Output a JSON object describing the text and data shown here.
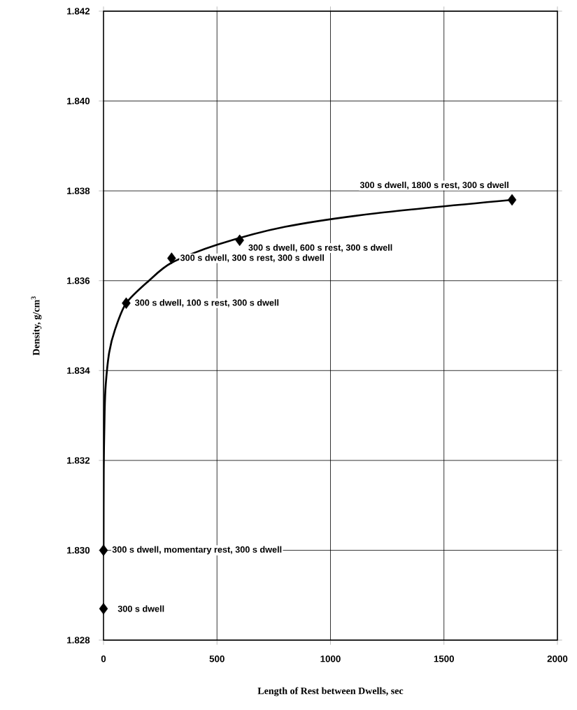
{
  "chart_data": {
    "type": "scatter",
    "xlabel": "Length of Rest between Dwells, sec",
    "ylabel": "Density, g/cm$^{3}$",
    "xlim": [
      0,
      2000
    ],
    "ylim": [
      1.828,
      1.842
    ],
    "xticks": [
      0,
      500,
      1000,
      1500,
      2000
    ],
    "yticks": [
      1.828,
      {
        "value": 1.83,
        "label": "1.830"
      },
      1.832,
      1.834,
      1.836,
      1.838,
      {
        "value": 1.84,
        "label": "1.840"
      },
      1.842
    ],
    "grid": true,
    "marker": "diamond",
    "series": [
      {
        "type": "scatter",
        "color": "#000000",
        "x": [
          0,
          0,
          100,
          300,
          600,
          1800
        ],
        "values": [
          1.8287,
          1.83,
          1.8355,
          1.8365,
          1.8369,
          1.8378
        ]
      },
      {
        "type": "line",
        "color": "#000000",
        "marker": "none",
        "x": [
          0.1,
          1,
          5,
          10,
          25,
          50,
          100,
          200,
          300,
          500,
          800,
          1200,
          1800
        ],
        "values": [
          1.83,
          1.8318,
          1.8331,
          1.8337,
          1.8344,
          1.8349,
          1.8355,
          1.836,
          1.8364,
          1.8368,
          1.8372,
          1.8375,
          1.8378
        ]
      }
    ],
    "annotations": [
      {
        "text": "300 s dwell",
        "x": 0,
        "y": 1.8287
      },
      {
        "text": "300 s dwell, momentary rest, 300 s dwell",
        "x": 0,
        "y": 1.83
      },
      {
        "text": "300 s dwell, 100 s rest, 300 s  dwell",
        "x": 100,
        "y": 1.8355
      },
      {
        "text": "300 s dwell, 300 s rest, 300 s dwell",
        "x": 300,
        "y": 1.8365
      },
      {
        "text": "300 s dwell, 600 s rest, 300 s dwell",
        "x": 600,
        "y": 1.8369
      },
      {
        "text": "300 s dwell, 1800 s rest, 300 s dwell",
        "x": 1800,
        "y": 1.8378
      }
    ]
  }
}
